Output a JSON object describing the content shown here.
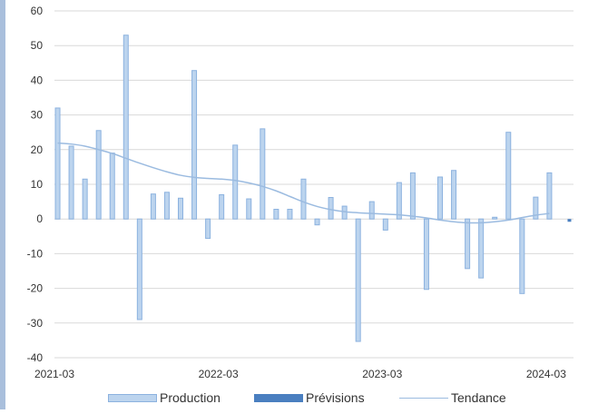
{
  "chart_data": {
    "type": "bar",
    "x": [
      "2021-03",
      "2021-04",
      "2021-05",
      "2021-06",
      "2021-07",
      "2021-08",
      "2021-09",
      "2021-10",
      "2021-11",
      "2021-12",
      "2022-01",
      "2022-02",
      "2022-03",
      "2022-04",
      "2022-05",
      "2022-06",
      "2022-07",
      "2022-08",
      "2022-09",
      "2022-10",
      "2022-11",
      "2022-12",
      "2023-01",
      "2023-02",
      "2023-03",
      "2023-04",
      "2023-05",
      "2023-06",
      "2023-07",
      "2023-08",
      "2023-09",
      "2023-10",
      "2023-11",
      "2023-12",
      "2024-01",
      "2024-02",
      "2024-03",
      "2024-04"
    ],
    "x_tick_labels": [
      "2021-03",
      "2022-03",
      "2023-03",
      "2024-03"
    ],
    "ylim": [
      -40,
      60
    ],
    "y_ticks": [
      "60",
      "50",
      "40",
      "30",
      "20",
      "10",
      "0",
      "-10",
      "-20",
      "-30",
      "-40"
    ],
    "grid": true,
    "legend_position": "bottom",
    "series": [
      {
        "name": "Production",
        "kind": "bar",
        "color": "#bcd4ee",
        "edge": "#8cb2df",
        "values": [
          32,
          21,
          11.5,
          25.5,
          19,
          53,
          -29,
          7.2,
          7.7,
          6,
          42.8,
          -5.6,
          7,
          21.3,
          5.8,
          26,
          2.8,
          2.8,
          11.5,
          -1.7,
          6.2,
          3.7,
          -35.3,
          5,
          -3.2,
          10.5,
          13.3,
          -20.3,
          12.1,
          14,
          -14.3,
          -17,
          0.5,
          25,
          -21.5,
          6.3,
          13.3,
          null
        ]
      },
      {
        "name": "Prévisions",
        "kind": "bar",
        "color": "#4a7fc0",
        "values": [
          null,
          null,
          null,
          null,
          null,
          null,
          null,
          null,
          null,
          null,
          null,
          null,
          null,
          null,
          null,
          null,
          null,
          null,
          null,
          null,
          null,
          null,
          null,
          null,
          null,
          null,
          null,
          null,
          null,
          null,
          null,
          null,
          null,
          null,
          null,
          null,
          null,
          -0.8
        ]
      },
      {
        "name": "Tendance",
        "kind": "line",
        "color": "#9bbbe0",
        "values": [
          21.9,
          21.6,
          21,
          20,
          18.9,
          17.5,
          16.1,
          14.8,
          13.6,
          12.6,
          12,
          11.7,
          11.5,
          11.1,
          10.4,
          9.4,
          8.1,
          6.5,
          4.9,
          3.6,
          2.7,
          2.1,
          1.8,
          1.6,
          1.4,
          1.2,
          0.8,
          0.3,
          -0.3,
          -0.8,
          -1.1,
          -1.1,
          -0.8,
          -0.3,
          0.4,
          1.1,
          1.6,
          null
        ]
      }
    ]
  },
  "legend": {
    "production": "Production",
    "previsions": "Prévisions",
    "tendance": "Tendance"
  }
}
